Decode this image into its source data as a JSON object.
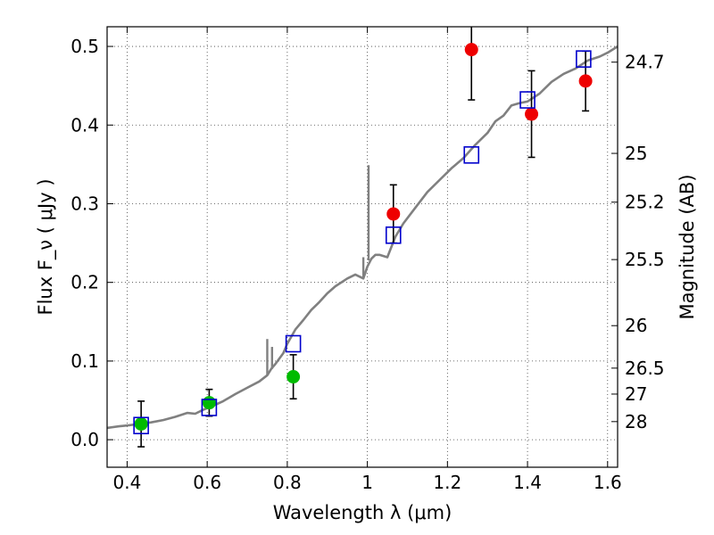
{
  "chart_data": {
    "type": "scatter",
    "title": "",
    "xlabel": "Wavelength  λ (μm)",
    "ylabel": "Flux  F_ν  ( μJy )",
    "ylabel2": "Magnitude (AB)",
    "xlim": [
      0.35,
      1.625
    ],
    "ylim": [
      -0.035,
      0.525
    ],
    "grid": true,
    "x_ticks": [
      0.4,
      0.6,
      0.8,
      1.0,
      1.2,
      1.4,
      1.6
    ],
    "x_tick_labels": [
      "0.4",
      "0.6",
      "0.8",
      "1",
      "1.2",
      "1.4",
      "1.6"
    ],
    "y_ticks": [
      0.0,
      0.1,
      0.2,
      0.3,
      0.4,
      0.5
    ],
    "y_tick_labels": [
      "0.0",
      "0.1",
      "0.2",
      "0.3",
      "0.4",
      "0.5"
    ],
    "mag_ticks": [
      {
        "label": "24.7",
        "flux": 0.48
      },
      {
        "label": "25",
        "flux": 0.364
      },
      {
        "label": "25.2",
        "flux": 0.302
      },
      {
        "label": "25.5",
        "flux": 0.229
      },
      {
        "label": "26",
        "flux": 0.145
      },
      {
        "label": "26.5",
        "flux": 0.091
      },
      {
        "label": "27",
        "flux": 0.058
      },
      {
        "label": "28",
        "flux": 0.023
      }
    ],
    "colors": {
      "sed": "#808080",
      "green": "#00bb00",
      "red": "#ee0000",
      "model_box": "#0000cc",
      "errorbar": "#000000"
    },
    "series": [
      {
        "kind": "line",
        "x": [
          0.35,
          0.38,
          0.4,
          0.43,
          0.46,
          0.49,
          0.52,
          0.55,
          0.57,
          0.59,
          0.61,
          0.64,
          0.67,
          0.7,
          0.73,
          0.75,
          0.76,
          0.77,
          0.79,
          0.8,
          0.82,
          0.84,
          0.86,
          0.88,
          0.9,
          0.92,
          0.95,
          0.97,
          0.99,
          1.0,
          1.01,
          1.02,
          1.03,
          1.05,
          1.07,
          1.09,
          1.12,
          1.15,
          1.18,
          1.21,
          1.24,
          1.27,
          1.3,
          1.32,
          1.34,
          1.36,
          1.38,
          1.4,
          1.43,
          1.46,
          1.49,
          1.52,
          1.55,
          1.58,
          1.6,
          1.625
        ],
        "y": [
          0.015,
          0.017,
          0.018,
          0.02,
          0.022,
          0.025,
          0.029,
          0.034,
          0.033,
          0.038,
          0.042,
          0.049,
          0.058,
          0.066,
          0.074,
          0.082,
          0.09,
          0.096,
          0.11,
          0.122,
          0.14,
          0.152,
          0.165,
          0.175,
          0.186,
          0.195,
          0.205,
          0.21,
          0.205,
          0.22,
          0.23,
          0.235,
          0.235,
          0.232,
          0.258,
          0.275,
          0.295,
          0.315,
          0.33,
          0.345,
          0.358,
          0.375,
          0.39,
          0.405,
          0.412,
          0.425,
          0.428,
          0.43,
          0.44,
          0.455,
          0.465,
          0.472,
          0.482,
          0.487,
          0.492,
          0.5
        ]
      },
      {
        "kind": "spikes",
        "points": [
          {
            "x": 0.75,
            "y0": 0.082,
            "y1": 0.128
          },
          {
            "x": 0.762,
            "y0": 0.09,
            "y1": 0.118
          },
          {
            "x": 1.003,
            "y0": 0.228,
            "y1": 0.349
          },
          {
            "x": 0.99,
            "y0": 0.205,
            "y1": 0.232
          }
        ]
      },
      {
        "kind": "points",
        "color": "green",
        "x": [
          0.435,
          0.605,
          0.815
        ],
        "y": [
          0.02,
          0.047,
          0.08
        ],
        "err": [
          0.029,
          0.017,
          0.028
        ]
      },
      {
        "kind": "points",
        "color": "red",
        "x": [
          1.065,
          1.26,
          1.41,
          1.545
        ],
        "y": [
          0.287,
          0.496,
          0.414,
          0.456
        ],
        "err": [
          0.037,
          0.064,
          0.055,
          0.038
        ]
      },
      {
        "kind": "model",
        "x": [
          0.435,
          0.605,
          0.815,
          1.065,
          1.26,
          1.4,
          1.54
        ],
        "y": [
          0.018,
          0.041,
          0.122,
          0.26,
          0.362,
          0.432,
          0.484
        ]
      }
    ]
  }
}
